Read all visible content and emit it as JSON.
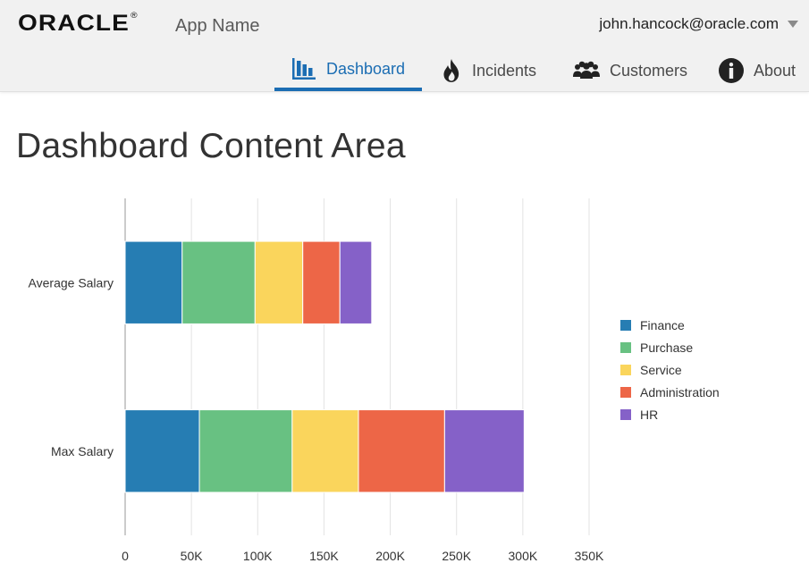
{
  "header": {
    "logo_text": "ORACLE",
    "logo_mark": "®",
    "app_name": "App Name",
    "user_email": "john.hancock@oracle.com"
  },
  "nav": {
    "tabs": [
      {
        "label": "Dashboard",
        "icon": "bar-chart-icon",
        "active": true
      },
      {
        "label": "Incidents",
        "icon": "flame-icon",
        "active": false
      },
      {
        "label": "Customers",
        "icon": "people-icon",
        "active": false
      },
      {
        "label": "About",
        "icon": "info-icon",
        "active": false
      }
    ],
    "active_color": "#1b6db3"
  },
  "main": {
    "title": "Dashboard Content Area"
  },
  "chart_data": {
    "type": "bar",
    "orientation": "horizontal",
    "stacked": true,
    "categories": [
      "Average Salary",
      "Max Salary"
    ],
    "series": [
      {
        "name": "Finance",
        "color": "#267db3",
        "values": [
          43000,
          56000
        ]
      },
      {
        "name": "Purchase",
        "color": "#68c182",
        "values": [
          55000,
          70000
        ]
      },
      {
        "name": "Service",
        "color": "#fad55c",
        "values": [
          36000,
          50000
        ]
      },
      {
        "name": "Administration",
        "color": "#ed6647",
        "values": [
          28000,
          65000
        ]
      },
      {
        "name": "HR",
        "color": "#8561c8",
        "values": [
          24000,
          60000
        ]
      }
    ],
    "xlim": [
      0,
      350000
    ],
    "x_ticks": [
      0,
      50000,
      100000,
      150000,
      200000,
      250000,
      300000,
      350000
    ],
    "x_tick_labels": [
      "0",
      "50K",
      "100K",
      "150K",
      "200K",
      "250K",
      "300K",
      "350K"
    ],
    "grid": true,
    "legend_position": "right",
    "title": "",
    "xlabel": "",
    "ylabel": ""
  }
}
